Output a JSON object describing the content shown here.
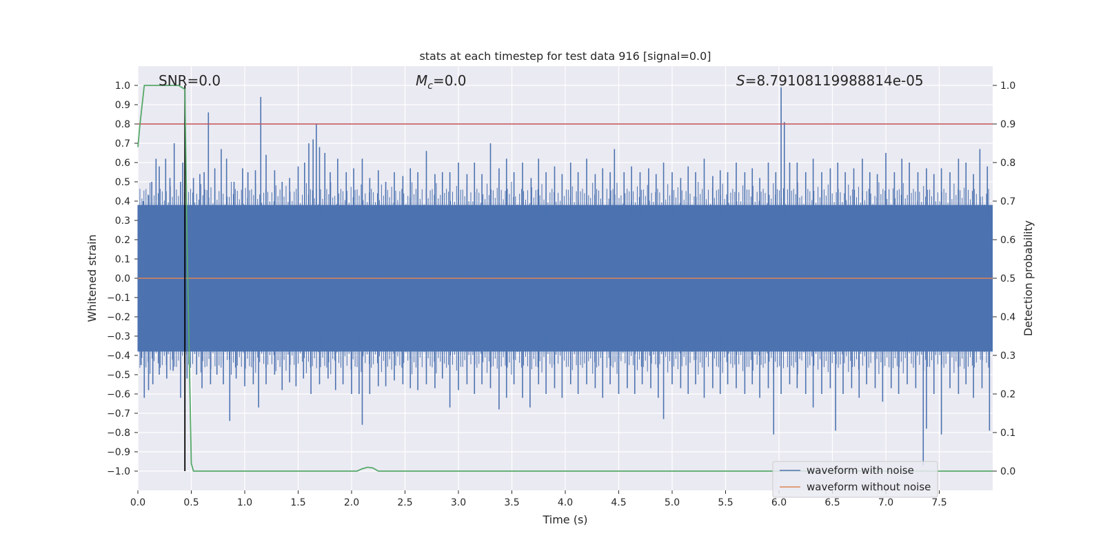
{
  "chart_data": {
    "type": "line",
    "title": "stats at each timestep for test data 916 [signal=0.0]",
    "xlabel": "Time (s)",
    "ylabel": "Whitened strain",
    "ylabel_right": "Detection probability",
    "xlim": [
      0.0,
      8.0
    ],
    "ylim": [
      -1.1,
      1.1
    ],
    "ylim_right": [
      -0.05,
      1.05
    ],
    "x_ticks": [
      "0.0",
      "0.5",
      "1.0",
      "1.5",
      "2.0",
      "2.5",
      "3.0",
      "3.5",
      "4.0",
      "4.5",
      "5.0",
      "5.5",
      "6.0",
      "6.5",
      "7.0",
      "7.5"
    ],
    "y_ticks": [
      "1.0",
      "0.9",
      "0.8",
      "0.7",
      "0.6",
      "0.5",
      "0.4",
      "0.3",
      "0.2",
      "0.1",
      "0.0",
      "−0.1",
      "−0.2",
      "−0.3",
      "−0.4",
      "−0.5",
      "−0.6",
      "−0.7",
      "−0.8",
      "−0.9",
      "−1.0"
    ],
    "y_ticks_right": [
      "1.0",
      "0.9",
      "0.8",
      "0.7",
      "0.6",
      "0.5",
      "0.4",
      "0.3",
      "0.2",
      "0.1",
      "0.0"
    ],
    "annotations": {
      "snr": "SNR=0.0",
      "mc_symbol": "M",
      "mc_sub": "c",
      "mc_value": "=0.0",
      "s_symbol": "S",
      "s_value": "=8.79108119988814e-05"
    },
    "colors": {
      "noise": "#4c72b0",
      "clean": "#dd8452",
      "prob": "#55a868",
      "threshold": "#c44e52",
      "marker": "#000000",
      "grid": "#ffffff",
      "background": "#eaeaf2"
    },
    "series": [
      {
        "name": "waveform with noise",
        "noise_band": 0.38,
        "spikes_pos": [
          [
            0.02,
            0.36
          ],
          [
            0.05,
            0.4
          ],
          [
            0.1,
            0.43
          ],
          [
            0.13,
            0.5
          ],
          [
            0.17,
            0.62
          ],
          [
            0.2,
            0.58
          ],
          [
            0.26,
            0.62
          ],
          [
            0.3,
            0.52
          ],
          [
            0.34,
            0.7
          ],
          [
            0.4,
            0.5
          ],
          [
            0.42,
            0.6
          ],
          [
            0.44,
            0.5
          ],
          [
            0.52,
            0.52
          ],
          [
            0.58,
            0.54
          ],
          [
            0.62,
            0.55
          ],
          [
            0.66,
            0.86
          ],
          [
            0.72,
            0.57
          ],
          [
            0.78,
            0.67
          ],
          [
            0.83,
            0.62
          ],
          [
            0.9,
            0.5
          ],
          [
            0.98,
            0.57
          ],
          [
            1.03,
            0.55
          ],
          [
            1.1,
            0.56
          ],
          [
            1.15,
            0.94
          ],
          [
            1.2,
            0.64
          ],
          [
            1.28,
            0.56
          ],
          [
            1.35,
            0.5
          ],
          [
            1.42,
            0.52
          ],
          [
            1.5,
            0.58
          ],
          [
            1.56,
            0.6
          ],
          [
            1.6,
            0.7
          ],
          [
            1.64,
            0.72
          ],
          [
            1.67,
            0.8
          ],
          [
            1.7,
            0.68
          ],
          [
            1.75,
            0.65
          ],
          [
            1.8,
            0.55
          ],
          [
            1.87,
            0.62
          ],
          [
            1.95,
            0.55
          ],
          [
            2.02,
            0.57
          ],
          [
            2.1,
            0.62
          ],
          [
            2.17,
            0.52
          ],
          [
            2.25,
            0.56
          ],
          [
            2.32,
            0.5
          ],
          [
            2.4,
            0.55
          ],
          [
            2.48,
            0.53
          ],
          [
            2.55,
            0.57
          ],
          [
            2.62,
            0.55
          ],
          [
            2.7,
            0.66
          ],
          [
            2.78,
            0.54
          ],
          [
            2.85,
            0.55
          ],
          [
            2.92,
            0.55
          ],
          [
            3.0,
            0.6
          ],
          [
            3.08,
            0.54
          ],
          [
            3.15,
            0.6
          ],
          [
            3.22,
            0.54
          ],
          [
            3.3,
            0.7
          ],
          [
            3.38,
            0.57
          ],
          [
            3.45,
            0.62
          ],
          [
            3.52,
            0.55
          ],
          [
            3.6,
            0.6
          ],
          [
            3.68,
            0.52
          ],
          [
            3.75,
            0.62
          ],
          [
            3.82,
            0.55
          ],
          [
            3.9,
            0.58
          ],
          [
            3.97,
            0.54
          ],
          [
            4.05,
            0.6
          ],
          [
            4.12,
            0.55
          ],
          [
            4.2,
            0.62
          ],
          [
            4.28,
            0.54
          ],
          [
            4.35,
            0.57
          ],
          [
            4.42,
            0.55
          ],
          [
            4.46,
            0.67
          ],
          [
            4.55,
            0.55
          ],
          [
            4.62,
            0.58
          ],
          [
            4.7,
            0.55
          ],
          [
            4.78,
            0.57
          ],
          [
            4.85,
            0.54
          ],
          [
            4.92,
            0.6
          ],
          [
            5.0,
            0.55
          ],
          [
            5.08,
            0.52
          ],
          [
            5.15,
            0.58
          ],
          [
            5.22,
            0.55
          ],
          [
            5.3,
            0.62
          ],
          [
            5.38,
            0.53
          ],
          [
            5.45,
            0.56
          ],
          [
            5.52,
            0.55
          ],
          [
            5.6,
            0.6
          ],
          [
            5.68,
            0.55
          ],
          [
            5.75,
            0.57
          ],
          [
            5.82,
            0.52
          ],
          [
            5.9,
            0.6
          ],
          [
            5.97,
            0.55
          ],
          [
            6.02,
            0.99
          ],
          [
            6.05,
            0.81
          ],
          [
            6.1,
            0.6
          ],
          [
            6.17,
            0.6
          ],
          [
            6.25,
            0.55
          ],
          [
            6.32,
            0.62
          ],
          [
            6.4,
            0.55
          ],
          [
            6.48,
            0.57
          ],
          [
            6.55,
            0.6
          ],
          [
            6.62,
            0.55
          ],
          [
            6.7,
            0.57
          ],
          [
            6.78,
            0.62
          ],
          [
            6.85,
            0.55
          ],
          [
            6.92,
            0.54
          ],
          [
            7.0,
            0.65
          ],
          [
            7.08,
            0.55
          ],
          [
            7.15,
            0.62
          ],
          [
            7.22,
            0.6
          ],
          [
            7.3,
            0.55
          ],
          [
            7.38,
            0.57
          ],
          [
            7.45,
            0.54
          ],
          [
            7.52,
            0.57
          ],
          [
            7.6,
            0.55
          ],
          [
            7.68,
            0.62
          ],
          [
            7.75,
            0.6
          ],
          [
            7.82,
            0.54
          ],
          [
            7.88,
            0.67
          ],
          [
            7.95,
            0.58
          ]
        ],
        "spikes_neg": [
          [
            0.03,
            -0.45
          ],
          [
            0.06,
            -0.62
          ],
          [
            0.1,
            -0.58
          ],
          [
            0.14,
            -0.55
          ],
          [
            0.2,
            -0.5
          ],
          [
            0.27,
            -0.52
          ],
          [
            0.33,
            -0.48
          ],
          [
            0.4,
            -0.62
          ],
          [
            0.46,
            -0.52
          ],
          [
            0.55,
            -0.5
          ],
          [
            0.6,
            -0.57
          ],
          [
            0.68,
            -0.55
          ],
          [
            0.74,
            -0.5
          ],
          [
            0.8,
            -0.55
          ],
          [
            0.86,
            -0.74
          ],
          [
            0.92,
            -0.52
          ],
          [
            1.0,
            -0.56
          ],
          [
            1.08,
            -0.55
          ],
          [
            1.13,
            -0.67
          ],
          [
            1.2,
            -0.55
          ],
          [
            1.28,
            -0.5
          ],
          [
            1.35,
            -0.58
          ],
          [
            1.42,
            -0.54
          ],
          [
            1.48,
            -0.56
          ],
          [
            1.55,
            -0.52
          ],
          [
            1.62,
            -0.6
          ],
          [
            1.7,
            -0.55
          ],
          [
            1.78,
            -0.52
          ],
          [
            1.85,
            -0.58
          ],
          [
            1.92,
            -0.55
          ],
          [
            2.0,
            -0.6
          ],
          [
            2.07,
            -0.6
          ],
          [
            2.1,
            -0.76
          ],
          [
            2.17,
            -0.6
          ],
          [
            2.25,
            -0.56
          ],
          [
            2.32,
            -0.56
          ],
          [
            2.4,
            -0.53
          ],
          [
            2.48,
            -0.55
          ],
          [
            2.55,
            -0.57
          ],
          [
            2.62,
            -0.58
          ],
          [
            2.7,
            -0.55
          ],
          [
            2.78,
            -0.57
          ],
          [
            2.85,
            -0.52
          ],
          [
            2.92,
            -0.67
          ],
          [
            3.0,
            -0.58
          ],
          [
            3.08,
            -0.55
          ],
          [
            3.15,
            -0.6
          ],
          [
            3.22,
            -0.55
          ],
          [
            3.3,
            -0.57
          ],
          [
            3.38,
            -0.68
          ],
          [
            3.45,
            -0.62
          ],
          [
            3.52,
            -0.55
          ],
          [
            3.6,
            -0.62
          ],
          [
            3.67,
            -0.67
          ],
          [
            3.75,
            -0.55
          ],
          [
            3.82,
            -0.6
          ],
          [
            3.9,
            -0.57
          ],
          [
            3.97,
            -0.62
          ],
          [
            4.05,
            -0.55
          ],
          [
            4.12,
            -0.6
          ],
          [
            4.2,
            -0.55
          ],
          [
            4.28,
            -0.57
          ],
          [
            4.35,
            -0.62
          ],
          [
            4.42,
            -0.55
          ],
          [
            4.5,
            -0.6
          ],
          [
            4.58,
            -0.57
          ],
          [
            4.65,
            -0.6
          ],
          [
            4.72,
            -0.55
          ],
          [
            4.8,
            -0.57
          ],
          [
            4.87,
            -0.62
          ],
          [
            4.92,
            -0.73
          ],
          [
            5.0,
            -0.55
          ],
          [
            5.08,
            -0.57
          ],
          [
            5.15,
            -0.6
          ],
          [
            5.22,
            -0.55
          ],
          [
            5.3,
            -0.62
          ],
          [
            5.38,
            -0.57
          ],
          [
            5.45,
            -0.6
          ],
          [
            5.52,
            -0.55
          ],
          [
            5.6,
            -0.57
          ],
          [
            5.68,
            -0.6
          ],
          [
            5.75,
            -0.55
          ],
          [
            5.82,
            -0.62
          ],
          [
            5.9,
            -0.57
          ],
          [
            5.95,
            -0.81
          ],
          [
            6.02,
            -0.6
          ],
          [
            6.1,
            -0.55
          ],
          [
            6.17,
            -0.57
          ],
          [
            6.25,
            -0.6
          ],
          [
            6.32,
            -0.67
          ],
          [
            6.4,
            -0.6
          ],
          [
            6.48,
            -0.57
          ],
          [
            6.53,
            -0.79
          ],
          [
            6.6,
            -0.6
          ],
          [
            6.68,
            -0.57
          ],
          [
            6.75,
            -0.62
          ],
          [
            6.82,
            -0.55
          ],
          [
            6.9,
            -0.57
          ],
          [
            6.97,
            -0.64
          ],
          [
            7.05,
            -0.57
          ],
          [
            7.12,
            -0.6
          ],
          [
            7.2,
            -0.55
          ],
          [
            7.28,
            -0.57
          ],
          [
            7.35,
            -0.97
          ],
          [
            7.38,
            -0.78
          ],
          [
            7.45,
            -0.6
          ],
          [
            7.52,
            -0.81
          ],
          [
            7.6,
            -0.57
          ],
          [
            7.68,
            -0.6
          ],
          [
            7.75,
            -0.55
          ],
          [
            7.82,
            -0.62
          ],
          [
            7.9,
            -0.57
          ],
          [
            7.97,
            -0.79
          ]
        ]
      },
      {
        "name": "waveform without noise",
        "points": [
          [
            0.0,
            0.0
          ],
          [
            8.0,
            0.0
          ]
        ]
      },
      {
        "name": "detection probability",
        "axis": "right",
        "points": [
          [
            0.0,
            0.84
          ],
          [
            0.02,
            0.9
          ],
          [
            0.06,
            1.0
          ],
          [
            0.1,
            1.0
          ],
          [
            0.15,
            1.0
          ],
          [
            0.2,
            1.0
          ],
          [
            0.3,
            1.0
          ],
          [
            0.38,
            1.0
          ],
          [
            0.44,
            0.99
          ],
          [
            0.46,
            0.6
          ],
          [
            0.5,
            0.02
          ],
          [
            0.52,
            0.0
          ],
          [
            0.55,
            0.0
          ],
          [
            1.0,
            0.0
          ],
          [
            2.0,
            0.0
          ],
          [
            2.05,
            0.0
          ],
          [
            2.1,
            0.006
          ],
          [
            2.15,
            0.01
          ],
          [
            2.2,
            0.008
          ],
          [
            2.25,
            0.0
          ],
          [
            3.0,
            0.0
          ],
          [
            4.0,
            0.0
          ],
          [
            5.0,
            0.0
          ],
          [
            6.0,
            0.0
          ],
          [
            7.0,
            0.0
          ],
          [
            8.0,
            0.0
          ]
        ]
      }
    ],
    "threshold_right": 0.9,
    "marker_x": 0.44,
    "marker_yrange": [
      -1.0,
      1.0
    ],
    "legend": {
      "placement": "lower-right",
      "entries": [
        "waveform with noise",
        "waveform without noise"
      ]
    }
  }
}
